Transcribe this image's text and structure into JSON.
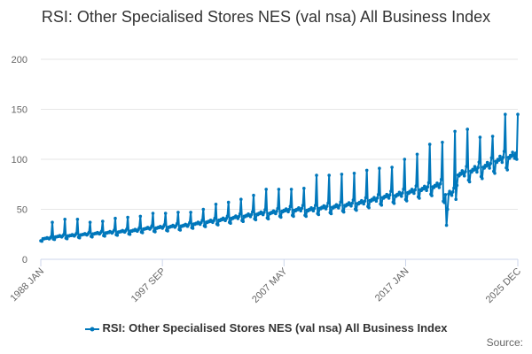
{
  "chart_data": {
    "type": "line",
    "title": "RSI: Other Specialised Stores NES (val nsa) All Business Index",
    "xlabel": "",
    "ylabel": "",
    "ylim": [
      0,
      200
    ],
    "y_ticks": [
      0,
      50,
      100,
      150,
      200
    ],
    "x_start": "1988 JAN",
    "x_end": "2025 DEC",
    "x_tick_labels": [
      "1988 JAN",
      "1997 SEP",
      "2007 MAY",
      "2017 JAN",
      "2025 DEC"
    ],
    "grid": "horizontal",
    "legend_position": "bottom",
    "colors": {
      "series": "#0077bb",
      "grid": "#e6e6e6",
      "axis": "#ccd6eb"
    },
    "series": [
      {
        "name": "RSI: Other Specialised Stores NES (val nsa) All Business Index",
        "annual_baseline": [
          [
            "1988",
            21
          ],
          [
            "1989",
            23
          ],
          [
            "1990",
            24
          ],
          [
            "1991",
            25
          ],
          [
            "1992",
            26
          ],
          [
            "1993",
            27
          ],
          [
            "1994",
            28
          ],
          [
            "1995",
            29
          ],
          [
            "1996",
            31
          ],
          [
            "1997",
            32
          ],
          [
            "1998",
            33
          ],
          [
            "1999",
            34
          ],
          [
            "2000",
            36
          ],
          [
            "2001",
            38
          ],
          [
            "2002",
            40
          ],
          [
            "2003",
            42
          ],
          [
            "2004",
            44
          ],
          [
            "2005",
            46
          ],
          [
            "2006",
            47
          ],
          [
            "2007",
            49
          ],
          [
            "2008",
            50
          ],
          [
            "2009",
            50
          ],
          [
            "2010",
            52
          ],
          [
            "2011",
            53
          ],
          [
            "2012",
            55
          ],
          [
            "2013",
            57
          ],
          [
            "2014",
            60
          ],
          [
            "2015",
            63
          ],
          [
            "2016",
            65
          ],
          [
            "2017",
            68
          ],
          [
            "2018",
            71
          ],
          [
            "2019",
            74
          ],
          [
            "2020",
            66
          ],
          [
            "2021",
            86
          ],
          [
            "2022",
            90
          ],
          [
            "2023",
            94
          ],
          [
            "2024",
            100
          ],
          [
            "2025",
            104
          ]
        ],
        "december_peaks": [
          [
            "1988 DEC",
            37
          ],
          [
            "1989 DEC",
            40
          ],
          [
            "1990 DEC",
            40
          ],
          [
            "1991 DEC",
            37
          ],
          [
            "1992 DEC",
            38
          ],
          [
            "1993 DEC",
            41
          ],
          [
            "1994 DEC",
            42
          ],
          [
            "1995 DEC",
            43
          ],
          [
            "1996 DEC",
            46
          ],
          [
            "1997 DEC",
            46
          ],
          [
            "1998 DEC",
            47
          ],
          [
            "1999 DEC",
            47
          ],
          [
            "2000 DEC",
            50
          ],
          [
            "2001 DEC",
            55
          ],
          [
            "2002 DEC",
            57
          ],
          [
            "2003 DEC",
            60
          ],
          [
            "2004 DEC",
            64
          ],
          [
            "2005 DEC",
            70
          ],
          [
            "2006 DEC",
            70
          ],
          [
            "2007 DEC",
            70
          ],
          [
            "2008 DEC",
            71
          ],
          [
            "2009 DEC",
            84
          ],
          [
            "2010 DEC",
            84
          ],
          [
            "2011 DEC",
            85
          ],
          [
            "2012 DEC",
            86
          ],
          [
            "2013 DEC",
            89
          ],
          [
            "2014 DEC",
            91
          ],
          [
            "2015 DEC",
            92
          ],
          [
            "2016 DEC",
            100
          ],
          [
            "2017 DEC",
            105
          ],
          [
            "2018 DEC",
            115
          ],
          [
            "2019 DEC",
            117
          ],
          [
            "2020 DEC",
            128
          ],
          [
            "2021 DEC",
            130
          ],
          [
            "2022 DEC",
            122
          ],
          [
            "2023 DEC",
            123
          ],
          [
            "2024 DEC",
            145
          ],
          [
            "2025 DEC",
            145
          ]
        ],
        "notable_points": [
          [
            "2020 APR",
            34
          ],
          [
            "2020 MAY",
            50
          ],
          [
            "2021 JAN",
            60
          ],
          [
            "2025 NOV",
            100
          ]
        ]
      }
    ]
  },
  "legend": {
    "label": "RSI: Other Specialised Stores NES (val nsa) All Business Index"
  },
  "footer": {
    "source_label": "Source:"
  }
}
